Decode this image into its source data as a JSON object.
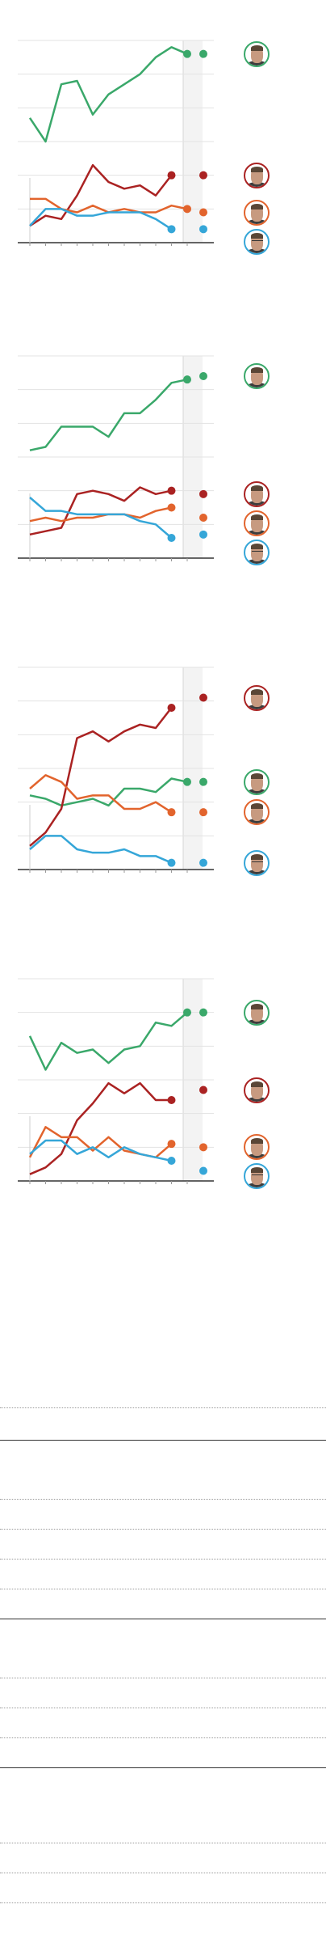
{
  "colors": {
    "green": "#3aa86a",
    "red": "#aa2222",
    "orange": "#e2642d",
    "blue": "#35a6d8",
    "grid": "#e3e3e3",
    "axis": "#333333"
  },
  "candidates": [
    {
      "id": "green",
      "icon": "candidate-portrait-green",
      "color": "#3aa86a"
    },
    {
      "id": "red",
      "icon": "candidate-portrait-red",
      "color": "#aa2222"
    },
    {
      "id": "orange",
      "icon": "candidate-portrait-orange",
      "color": "#e2642d"
    },
    {
      "id": "blue",
      "icon": "candidate-portrait-blue",
      "color": "#35a6d8",
      "glasses": true
    }
  ],
  "chart_data": [
    {
      "type": "line",
      "ylim": [
        0,
        60
      ],
      "n_points": 12,
      "final": {
        "green": 56,
        "red": 20,
        "orange": 9,
        "blue": 4
      },
      "series": [
        {
          "id": "green",
          "values": [
            37,
            30,
            47,
            48,
            38,
            44,
            47,
            50,
            55,
            58,
            56,
            null
          ]
        },
        {
          "id": "red",
          "values": [
            5,
            8,
            7,
            14,
            23,
            18,
            16,
            17,
            14,
            20,
            null,
            null
          ]
        },
        {
          "id": "orange",
          "values": [
            13,
            13,
            10,
            9,
            11,
            9,
            10,
            9,
            9,
            11,
            10,
            null
          ]
        },
        {
          "id": "blue",
          "values": [
            5,
            10,
            10,
            8,
            8,
            9,
            9,
            9,
            7,
            4,
            null,
            null
          ]
        }
      ]
    },
    {
      "type": "line",
      "ylim": [
        0,
        60
      ],
      "n_points": 12,
      "final": {
        "green": 54,
        "red": 19,
        "orange": 12,
        "blue": 7
      },
      "series": [
        {
          "id": "green",
          "values": [
            32,
            33,
            39,
            39,
            39,
            36,
            43,
            43,
            47,
            52,
            53,
            null
          ]
        },
        {
          "id": "red",
          "values": [
            7,
            8,
            9,
            19,
            20,
            19,
            17,
            21,
            19,
            20,
            null,
            null
          ]
        },
        {
          "id": "orange",
          "values": [
            11,
            12,
            11,
            12,
            12,
            13,
            13,
            12,
            14,
            15,
            null,
            null
          ]
        },
        {
          "id": "blue",
          "values": [
            18,
            14,
            14,
            13,
            13,
            13,
            13,
            11,
            10,
            6,
            null,
            null
          ]
        }
      ]
    },
    {
      "type": "line",
      "ylim": [
        0,
        60
      ],
      "n_points": 12,
      "final": {
        "green": 26,
        "red": 51,
        "orange": 17,
        "blue": 2
      },
      "series": [
        {
          "id": "green",
          "values": [
            22,
            21,
            19,
            20,
            21,
            19,
            24,
            24,
            23,
            27,
            26,
            null
          ]
        },
        {
          "id": "red",
          "values": [
            7,
            11,
            18,
            39,
            41,
            38,
            41,
            43,
            42,
            48,
            null,
            null
          ]
        },
        {
          "id": "orange",
          "values": [
            24,
            28,
            26,
            21,
            22,
            22,
            18,
            18,
            20,
            17,
            null,
            null
          ]
        },
        {
          "id": "blue",
          "values": [
            6,
            10,
            10,
            6,
            5,
            5,
            6,
            4,
            4,
            2,
            null,
            null
          ]
        }
      ]
    },
    {
      "type": "line",
      "ylim": [
        0,
        60
      ],
      "n_points": 12,
      "final": {
        "green": 50,
        "red": 27,
        "orange": 10,
        "blue": 3
      },
      "series": [
        {
          "id": "green",
          "values": [
            43,
            33,
            41,
            38,
            39,
            35,
            39,
            40,
            47,
            46,
            50,
            null
          ]
        },
        {
          "id": "red",
          "values": [
            2,
            4,
            8,
            18,
            23,
            29,
            26,
            29,
            24,
            24,
            null,
            null
          ]
        },
        {
          "id": "orange",
          "values": [
            7,
            16,
            13,
            13,
            9,
            13,
            9,
            8,
            7,
            11,
            null,
            null
          ]
        },
        {
          "id": "blue",
          "values": [
            8,
            12,
            12,
            8,
            10,
            7,
            10,
            8,
            7,
            6,
            null,
            null
          ]
        }
      ]
    }
  ]
}
